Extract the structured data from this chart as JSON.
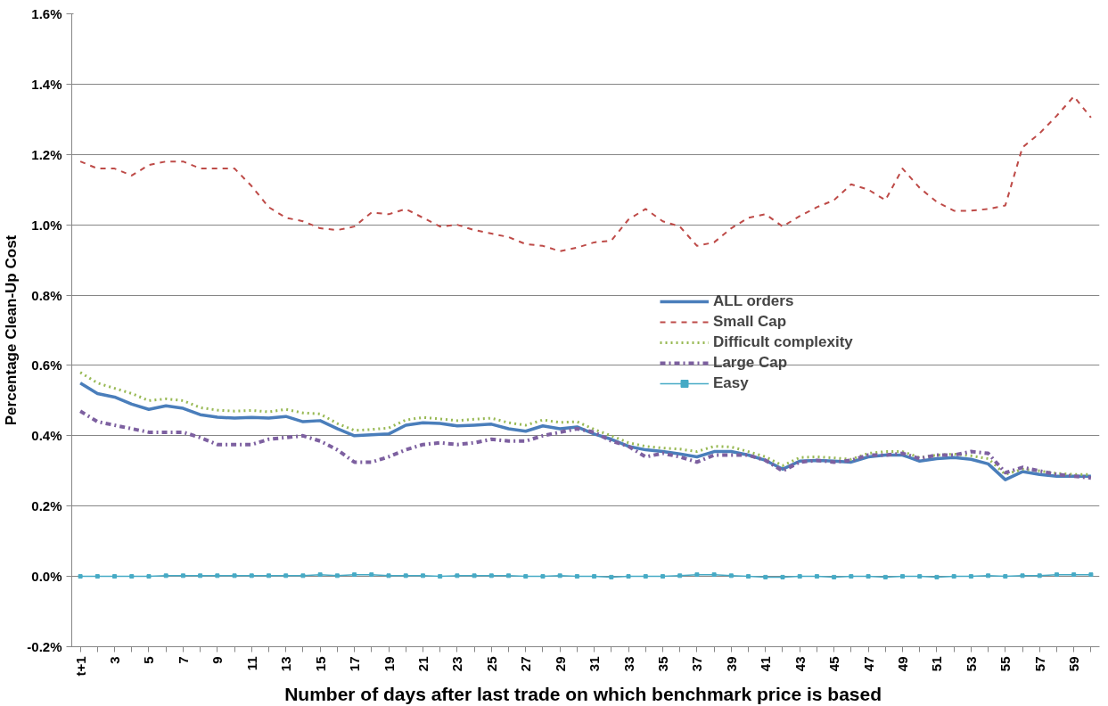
{
  "chart_data": {
    "type": "line",
    "xlabel": "Number of days after last trade on which benchmark price  is based",
    "ylabel": "Percentage Clean-Up Cost",
    "categories": [
      "t+1",
      null,
      "3",
      null,
      "5",
      null,
      "7",
      null,
      "9",
      null,
      "11",
      null,
      "13",
      null,
      "15",
      null,
      "17",
      null,
      "19",
      null,
      "21",
      null,
      "23",
      null,
      "25",
      null,
      "27",
      null,
      "29",
      null,
      "31",
      null,
      "33",
      null,
      "35",
      null,
      "37",
      null,
      "39",
      null,
      "41",
      null,
      "43",
      null,
      "45",
      null,
      "47",
      null,
      "49",
      null,
      "51",
      null,
      "53",
      null,
      "55",
      null,
      "57",
      null,
      "59",
      null
    ],
    "ylim": [
      -0.2,
      1.6
    ],
    "yticks": [
      {
        "value": -0.2,
        "label": "-0.2%"
      },
      {
        "value": 0.0,
        "label": "0.0%"
      },
      {
        "value": 0.2,
        "label": "0.2%"
      },
      {
        "value": 0.4,
        "label": "0.4%"
      },
      {
        "value": 0.6,
        "label": "0.6%"
      },
      {
        "value": 0.8,
        "label": "0.8%"
      },
      {
        "value": 1.0,
        "label": "1.0%"
      },
      {
        "value": 1.2,
        "label": "1.2%"
      },
      {
        "value": 1.4,
        "label": "1.4%"
      },
      {
        "value": 1.6,
        "label": "1.6%"
      }
    ],
    "grid": "y",
    "legend": "right",
    "series": [
      {
        "name": "ALL orders",
        "color": "#4a7ebb",
        "line_style": "solid",
        "marker": "none",
        "values": [
          0.55,
          0.52,
          0.51,
          0.49,
          0.475,
          0.485,
          0.478,
          0.46,
          0.453,
          0.45,
          0.452,
          0.45,
          0.455,
          0.44,
          0.443,
          0.42,
          0.4,
          0.403,
          0.405,
          0.43,
          0.437,
          0.435,
          0.428,
          0.43,
          0.433,
          0.42,
          0.413,
          0.428,
          0.42,
          0.425,
          0.405,
          0.39,
          0.37,
          0.36,
          0.355,
          0.348,
          0.34,
          0.355,
          0.355,
          0.345,
          0.33,
          0.305,
          0.328,
          0.33,
          0.328,
          0.325,
          0.34,
          0.345,
          0.345,
          0.328,
          0.335,
          0.338,
          0.333,
          0.32,
          0.275,
          0.298,
          0.29,
          0.285,
          0.285,
          0.285
        ]
      },
      {
        "name": "Small Cap",
        "color": "#be4b48",
        "line_style": "dashed",
        "marker": "none",
        "values": [
          1.18,
          1.16,
          1.16,
          1.14,
          1.17,
          1.18,
          1.18,
          1.16,
          1.16,
          1.16,
          1.11,
          1.05,
          1.02,
          1.01,
          0.99,
          0.985,
          0.995,
          1.035,
          1.03,
          1.045,
          1.02,
          0.995,
          1.0,
          0.985,
          0.975,
          0.965,
          0.945,
          0.94,
          0.925,
          0.935,
          0.95,
          0.955,
          1.015,
          1.045,
          1.01,
          0.995,
          0.94,
          0.95,
          0.99,
          1.02,
          1.03,
          0.995,
          1.025,
          1.05,
          1.07,
          1.115,
          1.1,
          1.07,
          1.16,
          1.105,
          1.065,
          1.04,
          1.04,
          1.045,
          1.055,
          1.22,
          1.26,
          1.31,
          1.365,
          1.305
        ]
      },
      {
        "name": "Difficult complexity",
        "color": "#98b954",
        "line_style": "dotted",
        "marker": "none",
        "values": [
          0.58,
          0.55,
          0.535,
          0.52,
          0.5,
          0.505,
          0.5,
          0.48,
          0.473,
          0.47,
          0.472,
          0.468,
          0.475,
          0.465,
          0.462,
          0.435,
          0.415,
          0.418,
          0.422,
          0.445,
          0.452,
          0.448,
          0.443,
          0.447,
          0.45,
          0.437,
          0.43,
          0.445,
          0.438,
          0.44,
          0.418,
          0.4,
          0.38,
          0.37,
          0.365,
          0.362,
          0.355,
          0.37,
          0.368,
          0.355,
          0.34,
          0.315,
          0.338,
          0.34,
          0.337,
          0.333,
          0.35,
          0.355,
          0.355,
          0.338,
          0.345,
          0.348,
          0.343,
          0.335,
          0.29,
          0.305,
          0.3,
          0.293,
          0.29,
          0.29
        ]
      },
      {
        "name": "Large Cap",
        "color": "#7d60a0",
        "line_style": "dashdot",
        "marker": "none",
        "values": [
          0.47,
          0.44,
          0.43,
          0.42,
          0.41,
          0.41,
          0.41,
          0.395,
          0.375,
          0.375,
          0.375,
          0.39,
          0.395,
          0.4,
          0.385,
          0.36,
          0.325,
          0.325,
          0.34,
          0.36,
          0.375,
          0.38,
          0.375,
          0.38,
          0.39,
          0.385,
          0.385,
          0.4,
          0.41,
          0.42,
          0.41,
          0.385,
          0.37,
          0.34,
          0.35,
          0.34,
          0.325,
          0.345,
          0.345,
          0.345,
          0.33,
          0.3,
          0.325,
          0.33,
          0.325,
          0.33,
          0.345,
          0.345,
          0.35,
          0.335,
          0.345,
          0.345,
          0.355,
          0.35,
          0.295,
          0.31,
          0.3,
          0.29,
          0.285,
          0.28
        ]
      },
      {
        "name": "Easy",
        "color": "#46aac5",
        "line_style": "solid",
        "marker": "square",
        "values": [
          0.0,
          0.0,
          0.0,
          0.0,
          0.0,
          0.002,
          0.002,
          0.002,
          0.002,
          0.002,
          0.002,
          0.002,
          0.002,
          0.002,
          0.005,
          0.002,
          0.005,
          0.005,
          0.002,
          0.002,
          0.002,
          0.0,
          0.002,
          0.002,
          0.002,
          0.002,
          0.0,
          0.0,
          0.002,
          0.0,
          0.0,
          -0.002,
          0.0,
          0.0,
          0.0,
          0.002,
          0.005,
          0.005,
          0.002,
          0.0,
          -0.002,
          -0.002,
          0.0,
          0.0,
          -0.002,
          0.0,
          0.0,
          -0.002,
          0.0,
          0.0,
          -0.002,
          0.0,
          0.0,
          0.002,
          0.0,
          0.002,
          0.002,
          0.005,
          0.005,
          0.005
        ]
      }
    ]
  }
}
